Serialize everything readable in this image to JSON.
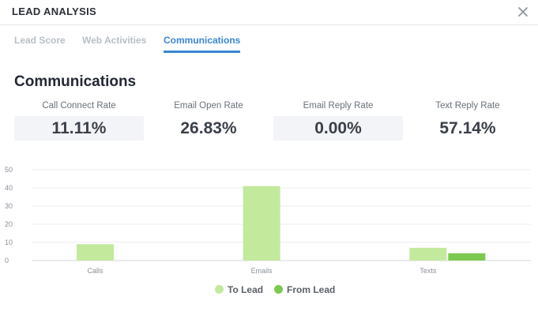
{
  "header": {
    "title": "LEAD ANALYSIS"
  },
  "tabs": [
    {
      "label": "Lead Score",
      "active": false
    },
    {
      "label": "Web Activities",
      "active": false
    },
    {
      "label": "Communications",
      "active": true
    }
  ],
  "section_title": "Communications",
  "metrics": [
    {
      "label": "Call Connect Rate",
      "value": "11.11%"
    },
    {
      "label": "Email Open Rate",
      "value": "26.83%"
    },
    {
      "label": "Email Reply Rate",
      "value": "0.00%"
    },
    {
      "label": "Text Reply Rate",
      "value": "57.14%"
    }
  ],
  "colors": {
    "to_lead": "#c3e99d",
    "from_lead": "#7cc94f",
    "accent": "#3a86d4"
  },
  "chart_data": {
    "type": "bar",
    "categories": [
      "Calls",
      "Emails",
      "Texts"
    ],
    "series": [
      {
        "name": "To Lead",
        "values": [
          9,
          41,
          7
        ]
      },
      {
        "name": "From Lead",
        "values": [
          0,
          0,
          4
        ]
      }
    ],
    "yticks": [
      0,
      10,
      20,
      30,
      40,
      50
    ],
    "ylim": [
      0,
      50
    ],
    "title": "",
    "xlabel": "",
    "ylabel": "",
    "legend": "bottom-center"
  }
}
